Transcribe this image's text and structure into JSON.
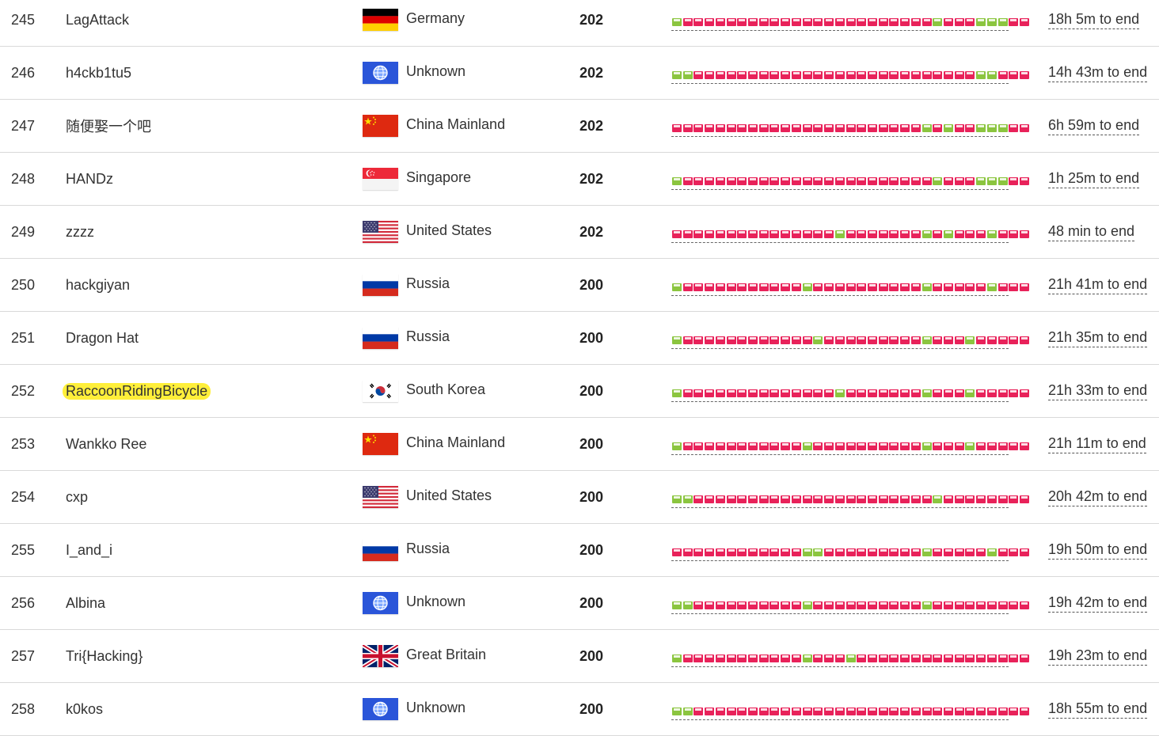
{
  "colors": {
    "solved": "#8bc53f",
    "unsolved": "#e8225a",
    "highlight": "#ffef3a"
  },
  "rows": [
    {
      "rank": "245",
      "team": "LagAttack",
      "flag": "germany-flag",
      "country": "Germany",
      "score": "202",
      "time": "18h 5m to end",
      "tasks": "gbbbbbbbbbbbbbbbbbbbbbbbgbbbgggbb",
      "highlight": false
    },
    {
      "rank": "246",
      "team": "h4ckb1tu5",
      "flag": "unknown-flag",
      "country": "Unknown",
      "score": "202",
      "time": "14h 43m to end",
      "tasks": "ggbbbbbbbbbbbbbbbbbbbbbbbbbbggbbb",
      "highlight": false
    },
    {
      "rank": "247",
      "team": "随便娶一个吧",
      "flag": "china-flag",
      "country": "China Mainland",
      "score": "202",
      "time": "6h 59m to end",
      "tasks": "bbbbbbbbbbbbbbbbbbbbbbbgbgbbgggbb",
      "highlight": false
    },
    {
      "rank": "248",
      "team": "HANDz",
      "flag": "singapore-flag",
      "country": "Singapore",
      "score": "202",
      "time": "1h 25m to end",
      "tasks": "gbbbbbbbbbbbbbbbbbbbbbbbgbbbgggbb",
      "highlight": false
    },
    {
      "rank": "249",
      "team": "zzzz",
      "flag": "usa-flag",
      "country": "United States",
      "score": "202",
      "time": "48 min to end",
      "tasks": "bbbbbbbbbbbbbbbgbbbbbbbgbgbbbgbbb",
      "highlight": false
    },
    {
      "rank": "250",
      "team": "hackgiyan",
      "flag": "russia-flag",
      "country": "Russia",
      "score": "200",
      "time": "21h 41m to end",
      "tasks": "gbbbbbbbbbbbgbbbbbbbbbbgbbbbbgbbb",
      "highlight": false
    },
    {
      "rank": "251",
      "team": "Dragon Hat",
      "flag": "russia-flag",
      "country": "Russia",
      "score": "200",
      "time": "21h 35m to end",
      "tasks": "gbbbbbbbbbbbbgbbbbbbbbbgbbbgbbbbb",
      "highlight": false
    },
    {
      "rank": "252",
      "team": "RaccoonRidingBicycle",
      "flag": "south-korea-flag",
      "country": "South Korea",
      "score": "200",
      "time": "21h 33m to end",
      "tasks": "gbbbbbbbbbbbbbbgbbbbbbbgbbbgbbbbb",
      "highlight": true
    },
    {
      "rank": "253",
      "team": "Wankko Ree",
      "flag": "china-flag",
      "country": "China Mainland",
      "score": "200",
      "time": "21h 11m to end",
      "tasks": "gbbbbbbbbbbbgbbbbbbbbbbgbbbgbbbbb",
      "highlight": false
    },
    {
      "rank": "254",
      "team": "cxp",
      "flag": "usa-flag",
      "country": "United States",
      "score": "200",
      "time": "20h 42m to end",
      "tasks": "ggbbbbbbbbbbbbbbbbbbbbbbgbbbbbbbb",
      "highlight": false
    },
    {
      "rank": "255",
      "team": "I_and_i",
      "flag": "russia-flag",
      "country": "Russia",
      "score": "200",
      "time": "19h 50m to end",
      "tasks": "bbbbbbbbbbbbggbbbbbbbbbgbbbbbgbbb",
      "highlight": false
    },
    {
      "rank": "256",
      "team": "Albina",
      "flag": "unknown-flag",
      "country": "Unknown",
      "score": "200",
      "time": "19h 42m to end",
      "tasks": "ggbbbbbbbbbbgbbbbbbbbbbgbbbbbbbbb",
      "highlight": false
    },
    {
      "rank": "257",
      "team": "Tri{Hacking}",
      "flag": "great-britain-flag",
      "country": "Great Britain",
      "score": "200",
      "time": "19h 23m to end",
      "tasks": "gbbbbbbbbbbbgbbbgbbbbbbbbbbbbbbbb",
      "highlight": false
    },
    {
      "rank": "258",
      "team": "k0kos",
      "flag": "unknown-flag",
      "country": "Unknown",
      "score": "200",
      "time": "18h 55m to end",
      "tasks": "ggbbbbbbbbbbbbbbbbbbbbbbbbbbbbbbb",
      "highlight": false
    }
  ]
}
